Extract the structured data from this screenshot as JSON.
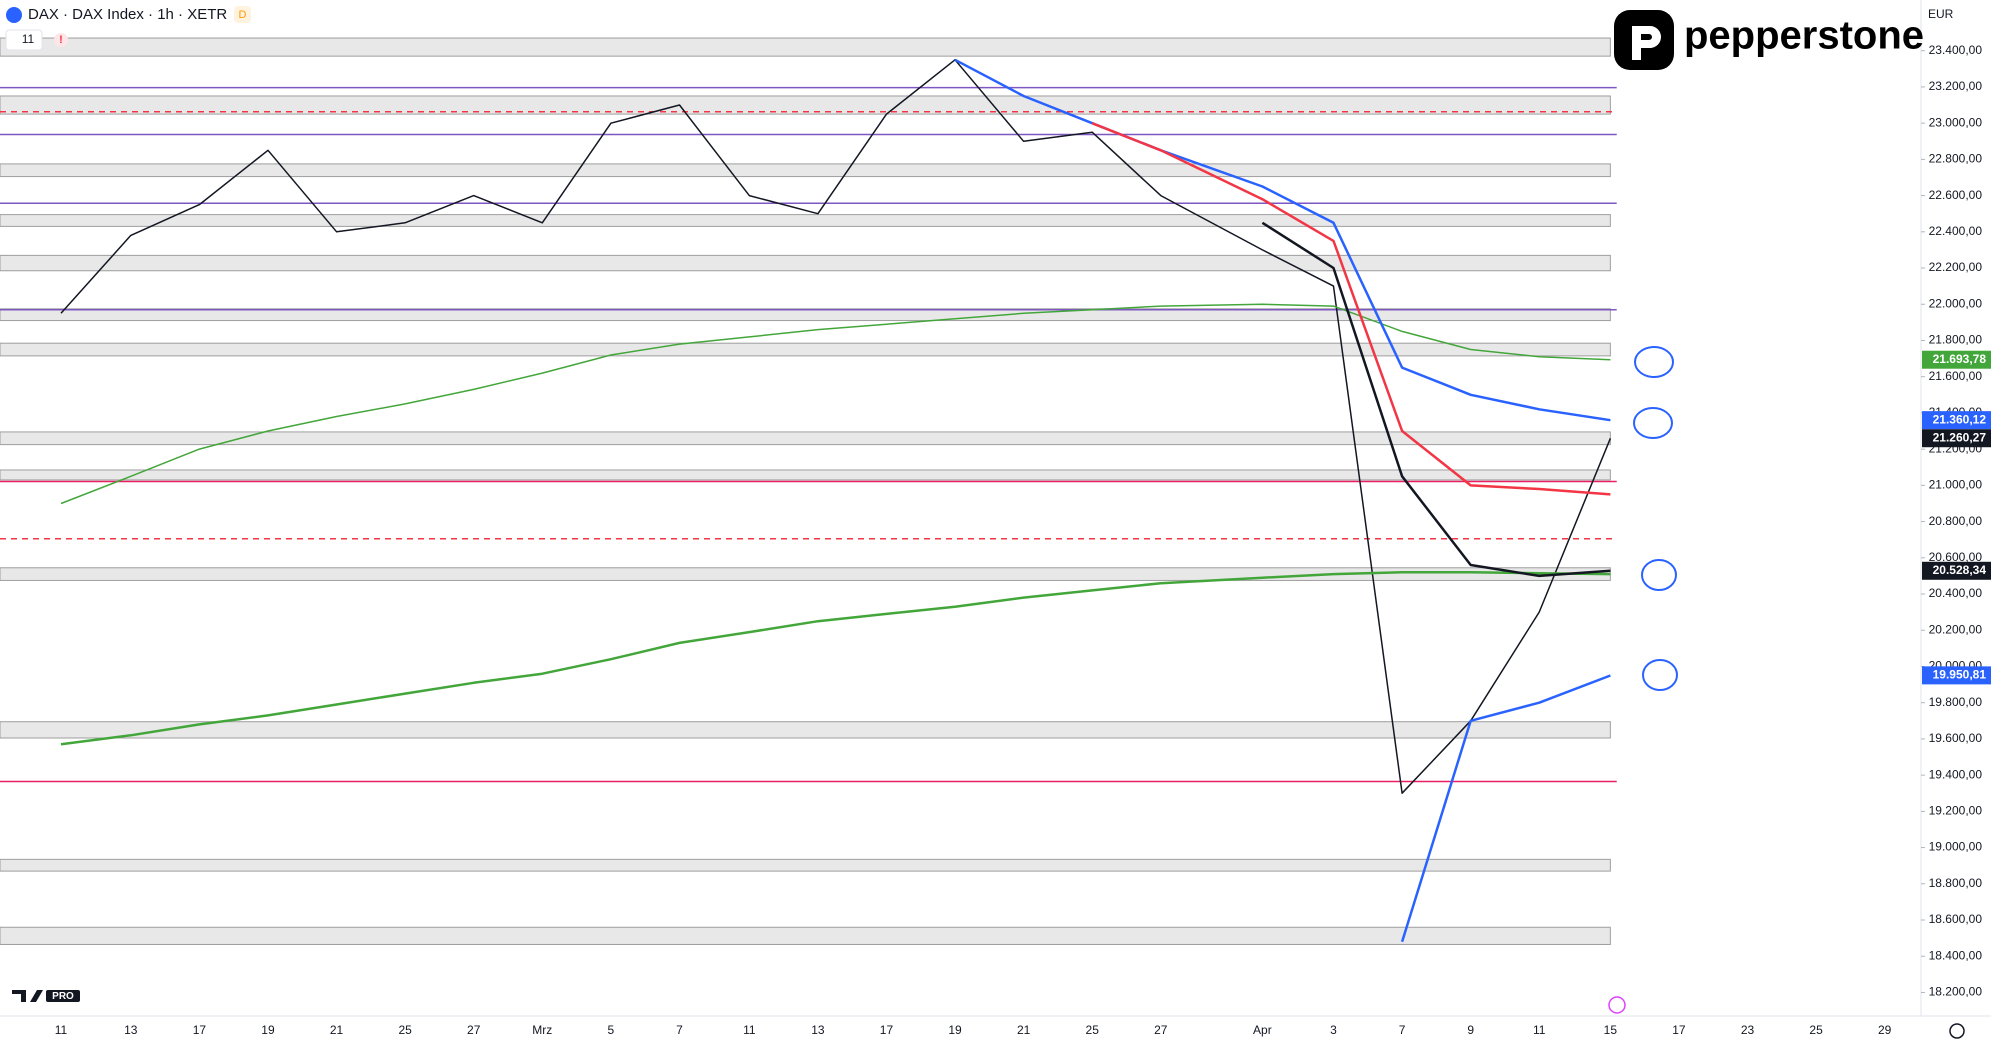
{
  "chart_data": {
    "type": "line",
    "title": "DAX · DAX Index · 1h · XETR",
    "badge": "D",
    "indicator_count": "11",
    "alert": "!",
    "currency": "EUR",
    "brand": "pepperstone",
    "watermark": "PRO",
    "categories": [
      "11",
      "13",
      "17",
      "19",
      "21",
      "25",
      "27",
      "Mrz",
      "5",
      "7",
      "11",
      "13",
      "17",
      "19",
      "21",
      "25",
      "27",
      "Apr",
      "3",
      "7",
      "9",
      "11",
      "15",
      "17",
      "23",
      "25",
      "29"
    ],
    "ylim": [
      18070,
      23680
    ],
    "yticks": [
      {
        "value": 18200,
        "label": "18.200,00"
      },
      {
        "value": 18400,
        "label": "18.400,00"
      },
      {
        "value": 18600,
        "label": "18.600,00"
      },
      {
        "value": 18800,
        "label": "18.800,00"
      },
      {
        "value": 19000,
        "label": "19.000,00"
      },
      {
        "value": 19200,
        "label": "19.200,00"
      },
      {
        "value": 19400,
        "label": "19.400,00"
      },
      {
        "value": 19600,
        "label": "19.600,00"
      },
      {
        "value": 19800,
        "label": "19.800,00"
      },
      {
        "value": 20000,
        "label": "20.000,00"
      },
      {
        "value": 20200,
        "label": "20.200,00"
      },
      {
        "value": 20400,
        "label": "20.400,00"
      },
      {
        "value": 20600,
        "label": "20.600,00"
      },
      {
        "value": 20800,
        "label": "20.800,00"
      },
      {
        "value": 21000,
        "label": "21.000,00"
      },
      {
        "value": 21200,
        "label": "21.200,00"
      },
      {
        "value": 21400,
        "label": "21.400,00"
      },
      {
        "value": 21600,
        "label": "21.600,00"
      },
      {
        "value": 21800,
        "label": "21.800,00"
      },
      {
        "value": 22000,
        "label": "22.000,00"
      },
      {
        "value": 22200,
        "label": "22.200,00"
      },
      {
        "value": 22400,
        "label": "22.400,00"
      },
      {
        "value": 22600,
        "label": "22.600,00"
      },
      {
        "value": 22800,
        "label": "22.800,00"
      },
      {
        "value": 23000,
        "label": "23.000,00"
      },
      {
        "value": 23200,
        "label": "23.200,00"
      },
      {
        "value": 23400,
        "label": "23.400,00"
      }
    ],
    "grid": false,
    "series": [
      {
        "name": "DAX",
        "color": "#131722",
        "width": 1.5,
        "values": [
          21950,
          22380,
          22550,
          22850,
          22400,
          22450,
          22600,
          22450,
          23000,
          23100,
          22600,
          22500,
          23050,
          23350,
          22900,
          22950,
          22600,
          22300,
          22100,
          19300,
          19700,
          20300,
          21260,
          null,
          null,
          null,
          null
        ]
      },
      {
        "name": "MA long",
        "color": "#43a63a",
        "width": 1.5,
        "values": [
          20900,
          21050,
          21200,
          21300,
          21380,
          21450,
          21530,
          21620,
          21720,
          21780,
          21820,
          21860,
          21890,
          21920,
          21950,
          21970,
          21990,
          22000,
          21990,
          21850,
          21750,
          21710,
          21694,
          null,
          null,
          null,
          null
        ]
      },
      {
        "name": "MA 200",
        "color": "#43a63a",
        "width": 2.5,
        "values": [
          19570,
          19620,
          19680,
          19730,
          19790,
          19850,
          19910,
          19960,
          20040,
          20130,
          20190,
          20250,
          20290,
          20330,
          20380,
          20420,
          20460,
          20490,
          20510,
          20520,
          20520,
          20515,
          20510,
          null,
          null,
          null,
          null
        ]
      },
      {
        "name": "EMA blue",
        "color": "#2962ff",
        "width": 2.5,
        "values": [
          null,
          null,
          null,
          null,
          null,
          null,
          null,
          null,
          null,
          null,
          null,
          null,
          null,
          23350,
          23150,
          23000,
          22850,
          22650,
          22450,
          21650,
          21500,
          21420,
          21360,
          null,
          null,
          null,
          null
        ]
      },
      {
        "name": "EMA red",
        "color": "#f23645",
        "width": 2.5,
        "values": [
          null,
          null,
          null,
          null,
          null,
          null,
          null,
          null,
          null,
          null,
          null,
          null,
          null,
          null,
          null,
          23000,
          22850,
          22580,
          22350,
          21300,
          21000,
          20980,
          20950,
          null,
          null,
          null,
          null
        ]
      },
      {
        "name": "EMA black",
        "color": "#131722",
        "width": 2.5,
        "values": [
          null,
          null,
          null,
          null,
          null,
          null,
          null,
          null,
          null,
          null,
          null,
          null,
          null,
          null,
          null,
          null,
          null,
          22450,
          22200,
          21050,
          20560,
          20500,
          20528,
          null,
          null,
          null,
          null
        ]
      },
      {
        "name": "VWAP",
        "color": "#2962ff",
        "width": 2.5,
        "values": [
          null,
          null,
          null,
          null,
          null,
          null,
          null,
          null,
          null,
          null,
          null,
          null,
          null,
          null,
          null,
          null,
          null,
          null,
          null,
          18480,
          19700,
          19800,
          19950,
          null,
          null,
          null,
          null
        ]
      }
    ],
    "zones": [
      [
        23370,
        23470
      ],
      [
        23050,
        23150
      ],
      [
        22705,
        22775
      ],
      [
        22430,
        22495
      ],
      [
        22185,
        22270
      ],
      [
        21910,
        21975
      ],
      [
        21715,
        21785
      ],
      [
        21225,
        21295
      ],
      [
        21030,
        21085
      ],
      [
        20475,
        20545
      ],
      [
        19605,
        19695
      ],
      [
        18870,
        18935
      ],
      [
        18465,
        18560
      ]
    ],
    "levels": [
      {
        "value": 23196,
        "color": "#7e57c2",
        "dash": false
      },
      {
        "value": 22937,
        "color": "#7e57c2",
        "dash": false
      },
      {
        "value": 22558,
        "color": "#7e57c2",
        "dash": false
      },
      {
        "value": 21970,
        "color": "#7e57c2",
        "dash": false
      },
      {
        "value": 21021,
        "color": "#e91e63",
        "dash": false
      },
      {
        "value": 19365,
        "color": "#e91e63",
        "dash": false
      },
      {
        "value": 23063,
        "color": "#f23645",
        "dash": true
      },
      {
        "value": 20705,
        "color": "#f23645",
        "dash": true
      }
    ],
    "price_labels": [
      {
        "value": 21693.78,
        "label": "21.693,78",
        "color": "#43a63a"
      },
      {
        "value": 21360.12,
        "label": "21.360,12",
        "color": "#2962ff"
      },
      {
        "value": 21260.27,
        "label": "21.260,27",
        "color": "#131722"
      },
      {
        "value": 20528.34,
        "label": "20.528,34",
        "color": "#131722"
      },
      {
        "value": 19950.81,
        "label": "19.950,81",
        "color": "#2962ff"
      }
    ]
  }
}
